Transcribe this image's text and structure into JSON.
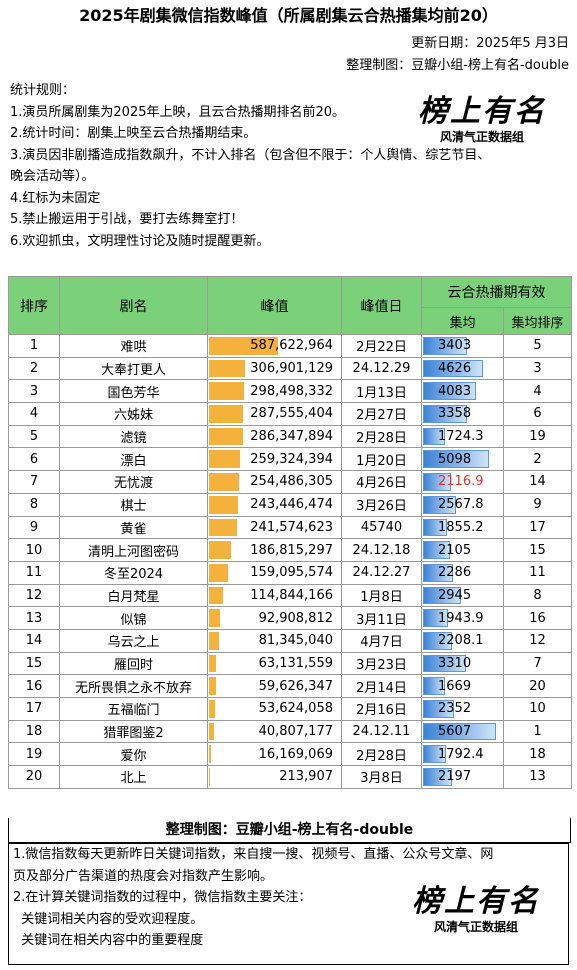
{
  "title": "2025年剧集微信指数峰值（所属剧集云合热播集均前20）",
  "updated": "更新日期：2025年5 月3日",
  "maker": "整理制图：豆瓣小组-榜上有名-double",
  "rules": [
    "统计规则：",
    "1.演员所属剧集为2025年上映，且云合热播期排名前20。",
    "2.统计时间：剧集上映至云合热播期结束。",
    "3.演员因非剧播造成指数飙升，不计入排名（包含但不限于：个人舆情、综艺节目、",
    "晚会活动等）。",
    "4.红标为未固定",
    "5.禁止搬运用于引战，要打去练舞室打！",
    "6.欢迎抓虫，文明理性讨论及随时提醒更新。"
  ],
  "logo": {
    "main": "榜上有名",
    "sub": "风清气正数据组"
  },
  "headers": {
    "rank": "排序",
    "name": "剧名",
    "peak": "峰值",
    "peak_day": "峰值日",
    "yunhe": "云合热播期有效",
    "avg": "集均",
    "avg_rank": "集均排序"
  },
  "rows": [
    {
      "rank": "1",
      "name": "难哄",
      "peak": "587,622,964",
      "peak_value": 587622964,
      "day": "2月22日",
      "avg": "3403",
      "avg_value": 3403,
      "avg_rank": "5"
    },
    {
      "rank": "2",
      "name": "大奉打更人",
      "peak": "306,901,129",
      "peak_value": 306901129,
      "day": "24.12.29",
      "avg": "4626",
      "avg_value": 4626,
      "avg_rank": "3"
    },
    {
      "rank": "3",
      "name": "国色芳华",
      "peak": "298,498,332",
      "peak_value": 298498332,
      "day": "1月13日",
      "avg": "4083",
      "avg_value": 4083,
      "avg_rank": "4"
    },
    {
      "rank": "4",
      "name": "六姊妹",
      "peak": "287,555,404",
      "peak_value": 287555404,
      "day": "2月27日",
      "avg": "3358",
      "avg_value": 3358,
      "avg_rank": "6"
    },
    {
      "rank": "5",
      "name": "滤镜",
      "peak": "286,347,894",
      "peak_value": 286347894,
      "day": "2月28日",
      "avg": "1724.3",
      "avg_value": 1724.3,
      "avg_rank": "19"
    },
    {
      "rank": "6",
      "name": "漂白",
      "peak": "259,324,394",
      "peak_value": 259324394,
      "day": "1月20日",
      "avg": "5098",
      "avg_value": 5098,
      "avg_rank": "2"
    },
    {
      "rank": "7",
      "name": "无忧渡",
      "peak": "254,486,305",
      "peak_value": 254486305,
      "day": "4月26日",
      "avg": "2116.9",
      "avg_value": 2116.9,
      "avg_rank": "14",
      "red": true
    },
    {
      "rank": "8",
      "name": "棋士",
      "peak": "243,446,474",
      "peak_value": 243446474,
      "day": "3月26日",
      "avg": "2567.8",
      "avg_value": 2567.8,
      "avg_rank": "9"
    },
    {
      "rank": "9",
      "name": "黄雀",
      "peak": "241,574,623",
      "peak_value": 241574623,
      "day": "45740",
      "avg": "1855.2",
      "avg_value": 1855.2,
      "avg_rank": "17"
    },
    {
      "rank": "10",
      "name": "清明上河图密码",
      "peak": "186,815,297",
      "peak_value": 186815297,
      "day": "24.12.18",
      "avg": "2105",
      "avg_value": 2105,
      "avg_rank": "15"
    },
    {
      "rank": "11",
      "name": "冬至2024",
      "peak": "159,095,574",
      "peak_value": 159095574,
      "day": "24.12.27",
      "avg": "2286",
      "avg_value": 2286,
      "avg_rank": "11"
    },
    {
      "rank": "12",
      "name": "白月梵星",
      "peak": "114,844,166",
      "peak_value": 114844166,
      "day": "1月8日",
      "avg": "2945",
      "avg_value": 2945,
      "avg_rank": "8"
    },
    {
      "rank": "13",
      "name": "似锦",
      "peak": "92,908,812",
      "peak_value": 92908812,
      "day": "3月11日",
      "avg": "1943.9",
      "avg_value": 1943.9,
      "avg_rank": "16"
    },
    {
      "rank": "14",
      "name": "乌云之上",
      "peak": "81,345,040",
      "peak_value": 81345040,
      "day": "4月7日",
      "avg": "2208.1",
      "avg_value": 2208.1,
      "avg_rank": "12"
    },
    {
      "rank": "15",
      "name": "雁回时",
      "peak": "63,131,559",
      "peak_value": 63131559,
      "day": "3月23日",
      "avg": "3310",
      "avg_value": 3310,
      "avg_rank": "7"
    },
    {
      "rank": "16",
      "name": "无所畏惧之永不放弃",
      "peak": "59,626,347",
      "peak_value": 59626347,
      "day": "2月14日",
      "avg": "1669",
      "avg_value": 1669,
      "avg_rank": "20"
    },
    {
      "rank": "17",
      "name": "五福临门",
      "peak": "53,624,058",
      "peak_value": 53624058,
      "day": "2月16日",
      "avg": "2352",
      "avg_value": 2352,
      "avg_rank": "10"
    },
    {
      "rank": "18",
      "name": "猎罪图鉴2",
      "peak": "40,807,177",
      "peak_value": 40807177,
      "day": "24.12.11",
      "avg": "5607",
      "avg_value": 5607,
      "avg_rank": "1"
    },
    {
      "rank": "19",
      "name": "爱你",
      "peak": "16,169,069",
      "peak_value": 16169069,
      "day": "2月28日",
      "avg": "1792.4",
      "avg_value": 1792.4,
      "avg_rank": "18"
    },
    {
      "rank": "20",
      "name": "北上",
      "peak": "213,907",
      "peak_value": 213907,
      "day": "3月8日",
      "avg": "2197",
      "avg_value": 2197,
      "avg_rank": "13"
    }
  ],
  "footer_title": "整理制图：豆瓣小组-榜上有名-double",
  "footer_lines": [
    "1.微信指数每天更新昨日关键词指数，来自搜一搜、视频号、直播、公众号文章、网",
    "页及部分广告渠道的热度会对指数产生影响。",
    "2.在计算关键词指数的过程中，微信指数主要关注：",
    "  关键词相关内容的受欢迎程度。",
    "  关键词在相关内容中的重要程度"
  ],
  "colors": {
    "header_bg": "#7bd17a",
    "peak_bar": "#f4b13b",
    "avg_bar": "#3b82d6",
    "unfixed": "#e03030"
  }
}
